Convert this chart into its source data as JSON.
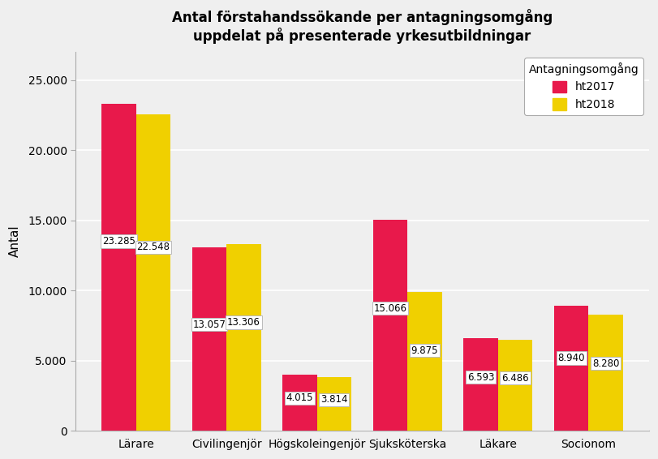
{
  "title": "Antal förstahandssökande per antagningsomgång\nuppdelat på presenterade yrkesutbildningar",
  "ylabel": "Antal",
  "legend_title": "Antagningsomgång",
  "legend_labels": [
    "ht2017",
    "ht2018"
  ],
  "categories": [
    "Lärare",
    "Civilingenjör",
    "Högskoleingenjör",
    "Sjuksköterska",
    "Läkare",
    "Socionom"
  ],
  "values_2017": [
    23285,
    13057,
    4015,
    15066,
    6593,
    8940
  ],
  "values_2018": [
    22548,
    13306,
    3814,
    9875,
    6486,
    8280
  ],
  "color_2017": "#E8194B",
  "color_2018": "#F0D000",
  "ylim": [
    0,
    27000
  ],
  "yticks": [
    0,
    5000,
    10000,
    15000,
    20000,
    25000
  ],
  "ytick_labels": [
    "0",
    "5.000",
    "10.000",
    "15.000",
    "20.000",
    "25.000"
  ],
  "bar_width": 0.38,
  "label_fontsize": 8.5,
  "title_fontsize": 12,
  "axis_label_fontsize": 11,
  "background_color": "#EFEFEF",
  "plot_bg_color": "#EFEFEF",
  "grid_color": "#FFFFFF",
  "spine_color": "#AAAAAA"
}
